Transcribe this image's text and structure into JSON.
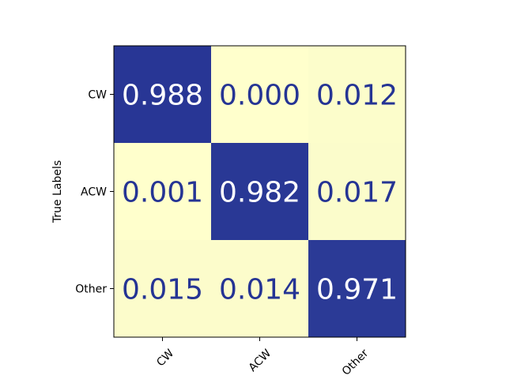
{
  "chart_data": {
    "type": "heatmap",
    "title": "",
    "xlabel": "",
    "ylabel": "True Labels",
    "x_categories": [
      "CW",
      "ACW",
      "Other"
    ],
    "y_categories": [
      "CW",
      "ACW",
      "Other"
    ],
    "values": [
      [
        0.988,
        0.0,
        0.012
      ],
      [
        0.001,
        0.982,
        0.017
      ],
      [
        0.015,
        0.014,
        0.971
      ]
    ],
    "value_labels": [
      [
        "0.988",
        "0.000",
        "0.012"
      ],
      [
        "0.001",
        "0.982",
        "0.017"
      ],
      [
        "0.015",
        "0.014",
        "0.971"
      ]
    ],
    "vrange": [
      0,
      1
    ],
    "colors": {
      "low": "#ffffcc",
      "high": "#253494",
      "text_on_dark": "#ffffff",
      "text_on_light": "#253494"
    },
    "grid": false,
    "legend": "none",
    "xtick_rotation": 45
  }
}
